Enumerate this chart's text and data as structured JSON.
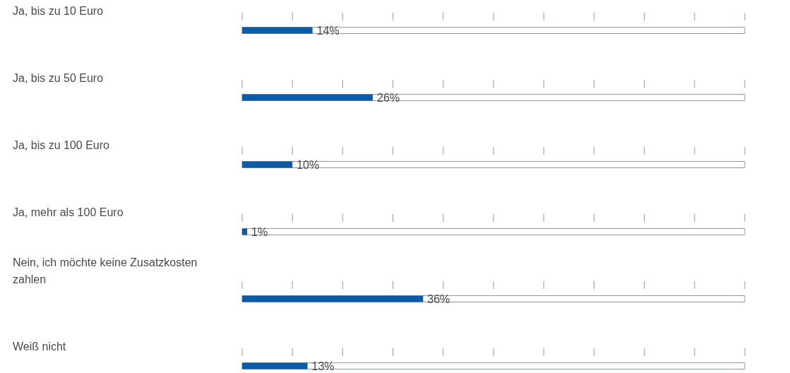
{
  "chart_data": {
    "type": "bar",
    "orientation": "horizontal",
    "categories": [
      "Ja, bis zu 10 Euro",
      "Ja, bis zu 50 Euro",
      "Ja, bis zu 100 Euro",
      "Ja, mehr als 100 Euro",
      "Nein, ich möchte keine Zusatzkosten zahlen",
      "Weiß nicht"
    ],
    "values": [
      14,
      26,
      10,
      1,
      36,
      13
    ],
    "value_labels": [
      "14%",
      "26%",
      "10%",
      "1%",
      "36%",
      "13%"
    ],
    "color": "#0b5ca8",
    "xlim": [
      0,
      100
    ],
    "tick_labels": "y",
    "grid": false
  }
}
